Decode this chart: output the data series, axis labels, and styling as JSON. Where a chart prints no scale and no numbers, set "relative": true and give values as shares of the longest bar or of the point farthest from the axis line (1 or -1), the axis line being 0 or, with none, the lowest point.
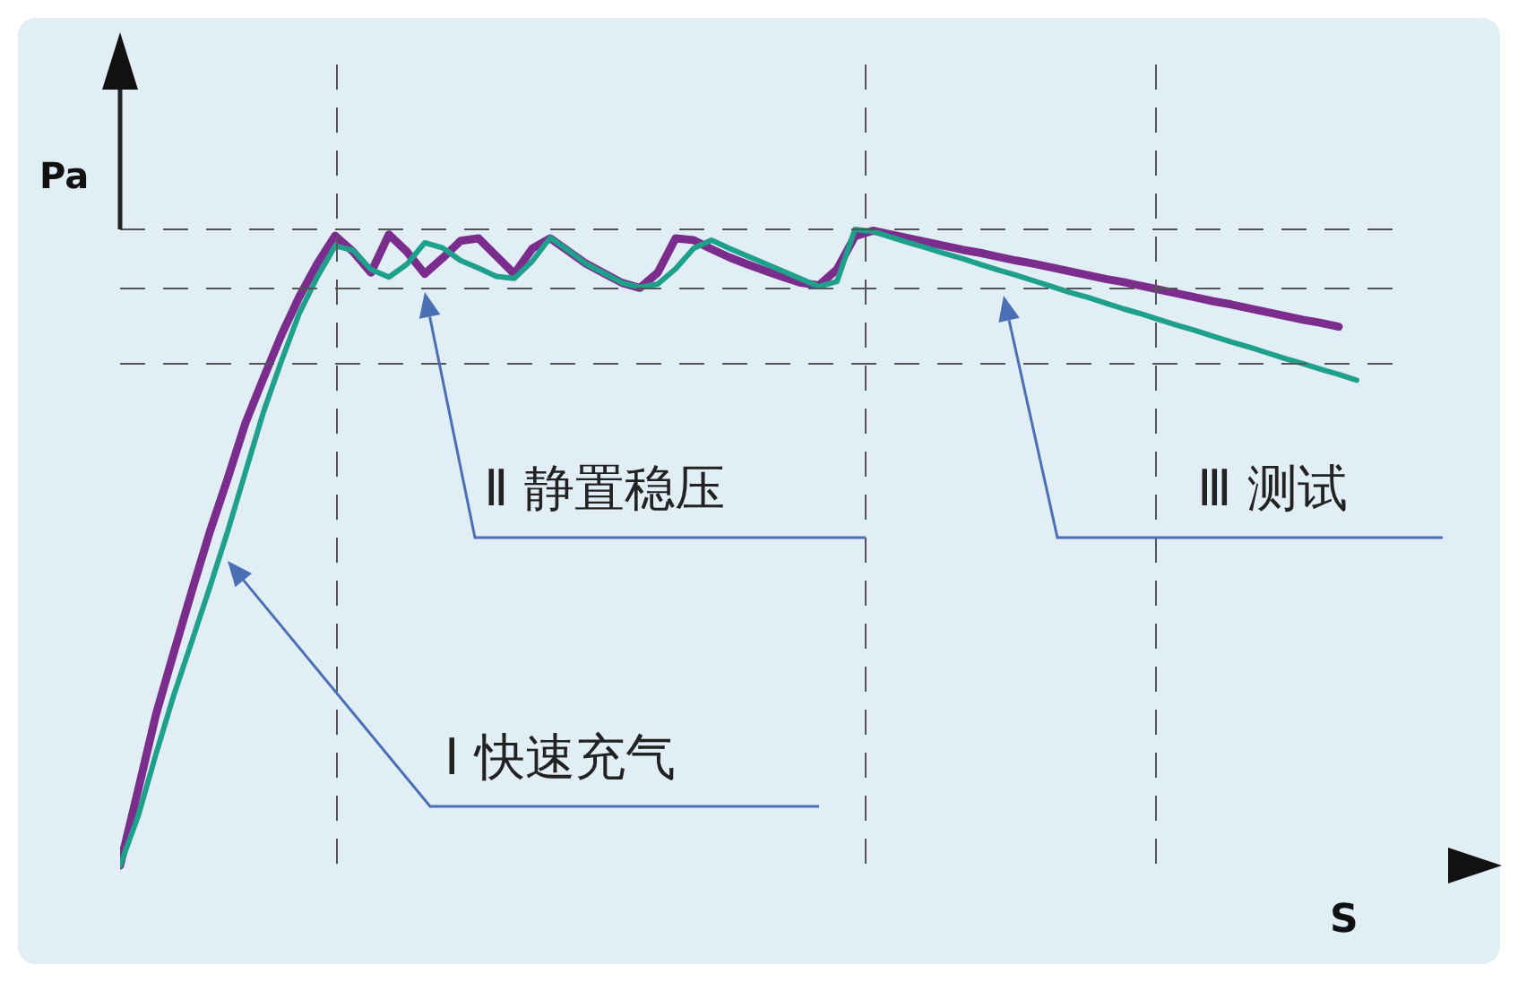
{
  "chart_data": {
    "type": "line",
    "relative": true,
    "xlabel": "S",
    "ylabel": "Pa",
    "marker": "none",
    "line_style": "solid",
    "categories": [
      null,
      null,
      null,
      null,
      null,
      null,
      null,
      null,
      null,
      null,
      null,
      null,
      null,
      null,
      null,
      null,
      null,
      null,
      null,
      null,
      null,
      null,
      null,
      null,
      null,
      null,
      null,
      null,
      null,
      null,
      null,
      null,
      null,
      null,
      null,
      null,
      null,
      null,
      null,
      null,
      null,
      null,
      null,
      null,
      null,
      null,
      null,
      null,
      null,
      null,
      null,
      null,
      null,
      null,
      null,
      null,
      null,
      null,
      null,
      null,
      null,
      null,
      null,
      null,
      null,
      null,
      null,
      null,
      null,
      null
    ],
    "series": [
      {
        "color": "#7b2d8e",
        "values": [
          0,
          0.118,
          0.237,
          0.335,
          0.431,
          0.524,
          0.608,
          0.696,
          0.766,
          0.834,
          0.894,
          0.946,
          0.99,
          0.965,
          0.932,
          0.992,
          0.965,
          0.93,
          0.955,
          0.982,
          0.986,
          0.958,
          0.93,
          0.97,
          0.986,
          0.966,
          0.946,
          0.931,
          0.916,
          0.908,
          0.932,
          0.986,
          0.983,
          0.969,
          0.956,
          0.945,
          0.935,
          0.925,
          0.916,
          0.912,
          0.937,
          0.989,
          0.998,
          0.992,
          0.986,
          0.98,
          0.974,
          0.968,
          0.963,
          0.957,
          0.951,
          0.946,
          0.94,
          0.934,
          0.928,
          0.922,
          0.917,
          0.911,
          0.905,
          0.899,
          0.893,
          0.887,
          0.882,
          0.876,
          0.87,
          0.864,
          0.858,
          0.853,
          0.847,
          null
        ]
      },
      {
        "color": "#1fa08a",
        "values": [
          0,
          0.077,
          0.175,
          0.268,
          0.352,
          0.437,
          0.525,
          0.619,
          0.713,
          0.793,
          0.868,
          0.925,
          0.974,
          0.967,
          0.937,
          0.925,
          0.945,
          0.979,
          0.971,
          0.951,
          0.939,
          0.926,
          0.923,
          0.95,
          0.987,
          0.967,
          0.946,
          0.931,
          0.916,
          0.909,
          0.914,
          0.938,
          0.97,
          0.983,
          0.97,
          0.958,
          0.946,
          0.934,
          0.922,
          0.91,
          0.918,
          1.0,
          0.997,
          0.988,
          0.979,
          0.971,
          0.962,
          0.954,
          0.945,
          0.936,
          0.928,
          0.919,
          0.91,
          0.901,
          0.893,
          0.884,
          0.875,
          0.867,
          0.858,
          0.849,
          0.841,
          0.832,
          0.823,
          0.815,
          0.806,
          0.797,
          0.789,
          0.78,
          0.772,
          0.763
        ]
      }
    ],
    "annotations": [
      "Ⅰ 快速充气",
      "Ⅱ 静置稳压",
      "Ⅲ 测试"
    ]
  }
}
